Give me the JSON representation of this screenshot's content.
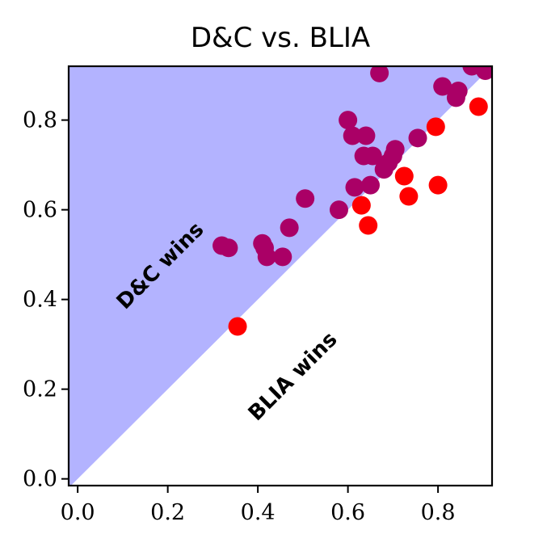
{
  "chart_data": {
    "type": "scatter",
    "title": "D&C vs. BLIA",
    "xlabel": "",
    "ylabel": "",
    "xlim": [
      -0.02,
      0.92
    ],
    "ylim": [
      -0.015,
      0.92
    ],
    "xticks": [
      "0.0",
      "0.2",
      "0.4",
      "0.6",
      "0.8"
    ],
    "yticks": [
      "0.0",
      "0.2",
      "0.4",
      "0.6",
      "0.8"
    ],
    "grid": false,
    "region_labels": {
      "above_diagonal": "D&C wins",
      "below_diagonal": "BLIA wins"
    },
    "colors": {
      "upper_region": "#b3b3ff",
      "point": "#ff0000",
      "point_overlap": "#aa0066"
    },
    "points": [
      {
        "x": 0.32,
        "y": 0.52
      },
      {
        "x": 0.335,
        "y": 0.515
      },
      {
        "x": 0.355,
        "y": 0.34
      },
      {
        "x": 0.41,
        "y": 0.525
      },
      {
        "x": 0.415,
        "y": 0.515
      },
      {
        "x": 0.42,
        "y": 0.495
      },
      {
        "x": 0.455,
        "y": 0.495
      },
      {
        "x": 0.47,
        "y": 0.56
      },
      {
        "x": 0.505,
        "y": 0.625
      },
      {
        "x": 0.58,
        "y": 0.6
      },
      {
        "x": 0.6,
        "y": 0.8
      },
      {
        "x": 0.61,
        "y": 0.765
      },
      {
        "x": 0.615,
        "y": 0.65
      },
      {
        "x": 0.63,
        "y": 0.61
      },
      {
        "x": 0.635,
        "y": 0.72
      },
      {
        "x": 0.64,
        "y": 0.765
      },
      {
        "x": 0.645,
        "y": 0.565
      },
      {
        "x": 0.65,
        "y": 0.655
      },
      {
        "x": 0.655,
        "y": 0.72
      },
      {
        "x": 0.67,
        "y": 0.905
      },
      {
        "x": 0.68,
        "y": 0.69
      },
      {
        "x": 0.69,
        "y": 0.705
      },
      {
        "x": 0.7,
        "y": 0.72
      },
      {
        "x": 0.705,
        "y": 0.735
      },
      {
        "x": 0.725,
        "y": 0.675
      },
      {
        "x": 0.735,
        "y": 0.63
      },
      {
        "x": 0.755,
        "y": 0.76
      },
      {
        "x": 0.795,
        "y": 0.785
      },
      {
        "x": 0.8,
        "y": 0.655
      },
      {
        "x": 0.81,
        "y": 0.875
      },
      {
        "x": 0.84,
        "y": 0.85
      },
      {
        "x": 0.845,
        "y": 0.865
      },
      {
        "x": 0.875,
        "y": 0.92
      },
      {
        "x": 0.89,
        "y": 0.83
      },
      {
        "x": 0.905,
        "y": 0.91
      }
    ]
  }
}
